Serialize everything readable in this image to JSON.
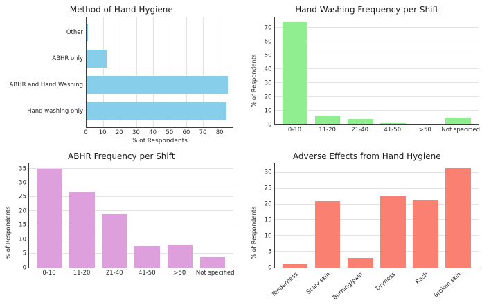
{
  "chart_data": [
    {
      "type": "bar",
      "orientation": "horizontal",
      "title": "Method of Hand Hygiene",
      "categories": [
        "Other",
        "ABHR only",
        "ABHR and Hand Washing",
        "Hand washing only"
      ],
      "values": [
        1,
        12,
        85,
        84
      ],
      "xlabel": "% of Respondents",
      "xlim": [
        0,
        88
      ],
      "xticks": [
        0,
        10,
        20,
        30,
        40,
        50,
        60,
        70,
        80
      ],
      "color": "#87CEEB",
      "grid": true,
      "legend": "none"
    },
    {
      "type": "bar",
      "orientation": "vertical",
      "title": "Hand Washing Frequency per Shift",
      "categories": [
        "0-10",
        "11-20",
        "21-40",
        "41-50",
        ">50",
        "Not specified"
      ],
      "values": [
        74,
        6,
        4,
        1,
        0.5,
        5
      ],
      "ylabel": "% of Respondents",
      "ylim": [
        0,
        78
      ],
      "yticks": [
        0,
        10,
        20,
        30,
        40,
        50,
        60,
        70
      ],
      "color": "#90EE90",
      "grid": true,
      "legend": "none"
    },
    {
      "type": "bar",
      "orientation": "vertical",
      "title": "ABHR Frequency per Shift",
      "categories": [
        "0-10",
        "11-20",
        "21-40",
        "41-50",
        ">50",
        "Not specified"
      ],
      "values": [
        35,
        27,
        19,
        7.5,
        8,
        4
      ],
      "ylabel": "% of Respondents",
      "ylim": [
        0,
        37
      ],
      "yticks": [
        0,
        5,
        10,
        15,
        20,
        25,
        30,
        35
      ],
      "color": "#DDA0DD",
      "grid": true,
      "legend": "none"
    },
    {
      "type": "bar",
      "orientation": "vertical",
      "title": "Adverse Effects from Hand Hygiene",
      "categories": [
        "Tenderness",
        "Scaly skin",
        "Burning/pain",
        "Dryness",
        "Rash",
        "Broken skin"
      ],
      "values": [
        1,
        21,
        3,
        22.5,
        21.5,
        31.5
      ],
      "ylabel": "% of Respondents",
      "ylim": [
        0,
        33
      ],
      "yticks": [
        0,
        5,
        10,
        15,
        20,
        25,
        30
      ],
      "color": "#FA8072",
      "rotate_labels": true,
      "grid": true,
      "legend": "none"
    }
  ]
}
